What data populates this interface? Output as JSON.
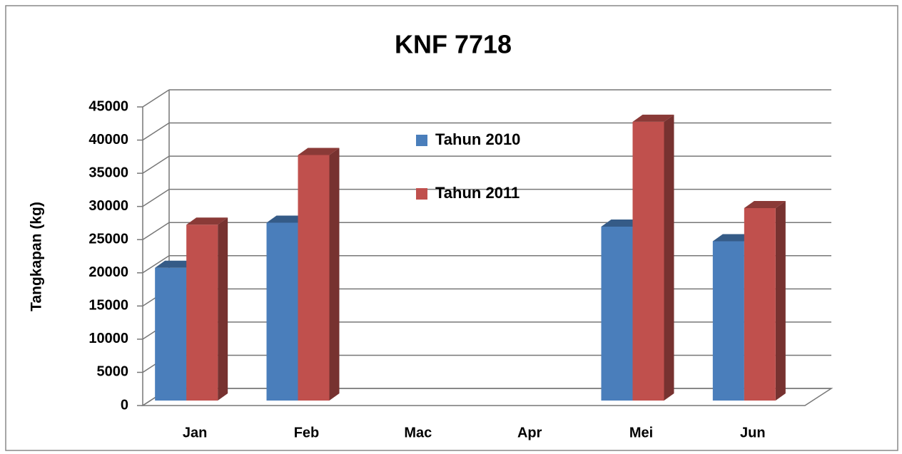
{
  "chart_data": {
    "type": "bar",
    "title": "KNF 7718",
    "y_label": "Tangkapan (kg)",
    "categories": [
      "Jan",
      "Feb",
      "Mac",
      "Apr",
      "Mei",
      "Jun"
    ],
    "series": [
      {
        "name": "Tahun 2010",
        "color": "#4a7ebb",
        "values": [
          20000,
          26800,
          null,
          null,
          26200,
          24000
        ]
      },
      {
        "name": "Tahun 2011",
        "color": "#c0504d",
        "values": [
          26500,
          37000,
          null,
          null,
          42000,
          29000
        ]
      }
    ],
    "ylim": [
      0,
      45000
    ],
    "yticks": [
      0,
      5000,
      10000,
      15000,
      20000,
      25000,
      30000,
      35000,
      40000,
      45000
    ],
    "grid": true
  }
}
